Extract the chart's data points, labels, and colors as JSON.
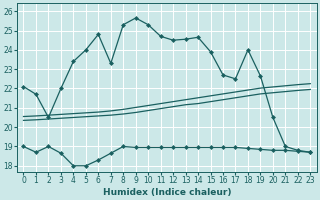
{
  "xlabel": "Humidex (Indice chaleur)",
  "bg_color": "#cce8e8",
  "grid_color": "#ffffff",
  "line_color": "#1a6060",
  "xlim": [
    -0.5,
    23.5
  ],
  "ylim": [
    17.7,
    26.4
  ],
  "yticks": [
    18,
    19,
    20,
    21,
    22,
    23,
    24,
    25,
    26
  ],
  "xticks": [
    0,
    1,
    2,
    3,
    4,
    5,
    6,
    7,
    8,
    9,
    10,
    11,
    12,
    13,
    14,
    15,
    16,
    17,
    18,
    19,
    20,
    21,
    22,
    23
  ],
  "curve1_x": [
    0,
    1,
    2,
    3,
    4,
    5,
    6,
    7,
    8,
    9,
    10,
    11,
    12,
    13,
    14,
    15,
    16,
    17,
    18,
    19,
    20,
    21,
    22,
    23
  ],
  "curve1_y": [
    22.1,
    21.7,
    20.5,
    22.0,
    23.4,
    24.0,
    24.8,
    23.3,
    25.3,
    25.65,
    25.3,
    24.7,
    24.5,
    24.55,
    24.65,
    23.9,
    22.7,
    22.5,
    24.0,
    22.65,
    20.5,
    19.0,
    18.8,
    18.7
  ],
  "curve2_x": [
    0,
    1,
    2,
    3,
    4,
    5,
    6,
    7,
    8,
    9,
    10,
    11,
    12,
    13,
    14,
    15,
    16,
    17,
    18,
    19,
    20,
    21,
    22,
    23
  ],
  "curve2_y": [
    20.35,
    20.38,
    20.42,
    20.46,
    20.5,
    20.54,
    20.58,
    20.62,
    20.68,
    20.76,
    20.86,
    20.96,
    21.06,
    21.16,
    21.22,
    21.32,
    21.42,
    21.52,
    21.62,
    21.72,
    21.78,
    21.84,
    21.9,
    21.95
  ],
  "curve3_x": [
    0,
    1,
    2,
    3,
    4,
    5,
    6,
    7,
    8,
    9,
    10,
    11,
    12,
    13,
    14,
    15,
    16,
    17,
    18,
    19,
    20,
    21,
    22,
    23
  ],
  "curve3_y": [
    20.55,
    20.58,
    20.62,
    20.66,
    20.7,
    20.74,
    20.78,
    20.84,
    20.92,
    21.02,
    21.12,
    21.22,
    21.32,
    21.42,
    21.52,
    21.62,
    21.72,
    21.82,
    21.92,
    22.02,
    22.08,
    22.14,
    22.2,
    22.25
  ],
  "curve4_x": [
    0,
    1,
    2,
    3,
    4,
    5,
    6,
    7,
    8,
    9,
    10,
    11,
    12,
    13,
    14,
    15,
    16,
    17,
    18,
    19,
    20,
    21,
    22,
    23
  ],
  "curve4_y": [
    19.0,
    18.7,
    19.0,
    18.65,
    18.0,
    18.0,
    18.3,
    18.65,
    19.0,
    18.95,
    18.95,
    18.95,
    18.95,
    18.95,
    18.95,
    18.95,
    18.95,
    18.95,
    18.9,
    18.85,
    18.8,
    18.8,
    18.75,
    18.7
  ]
}
